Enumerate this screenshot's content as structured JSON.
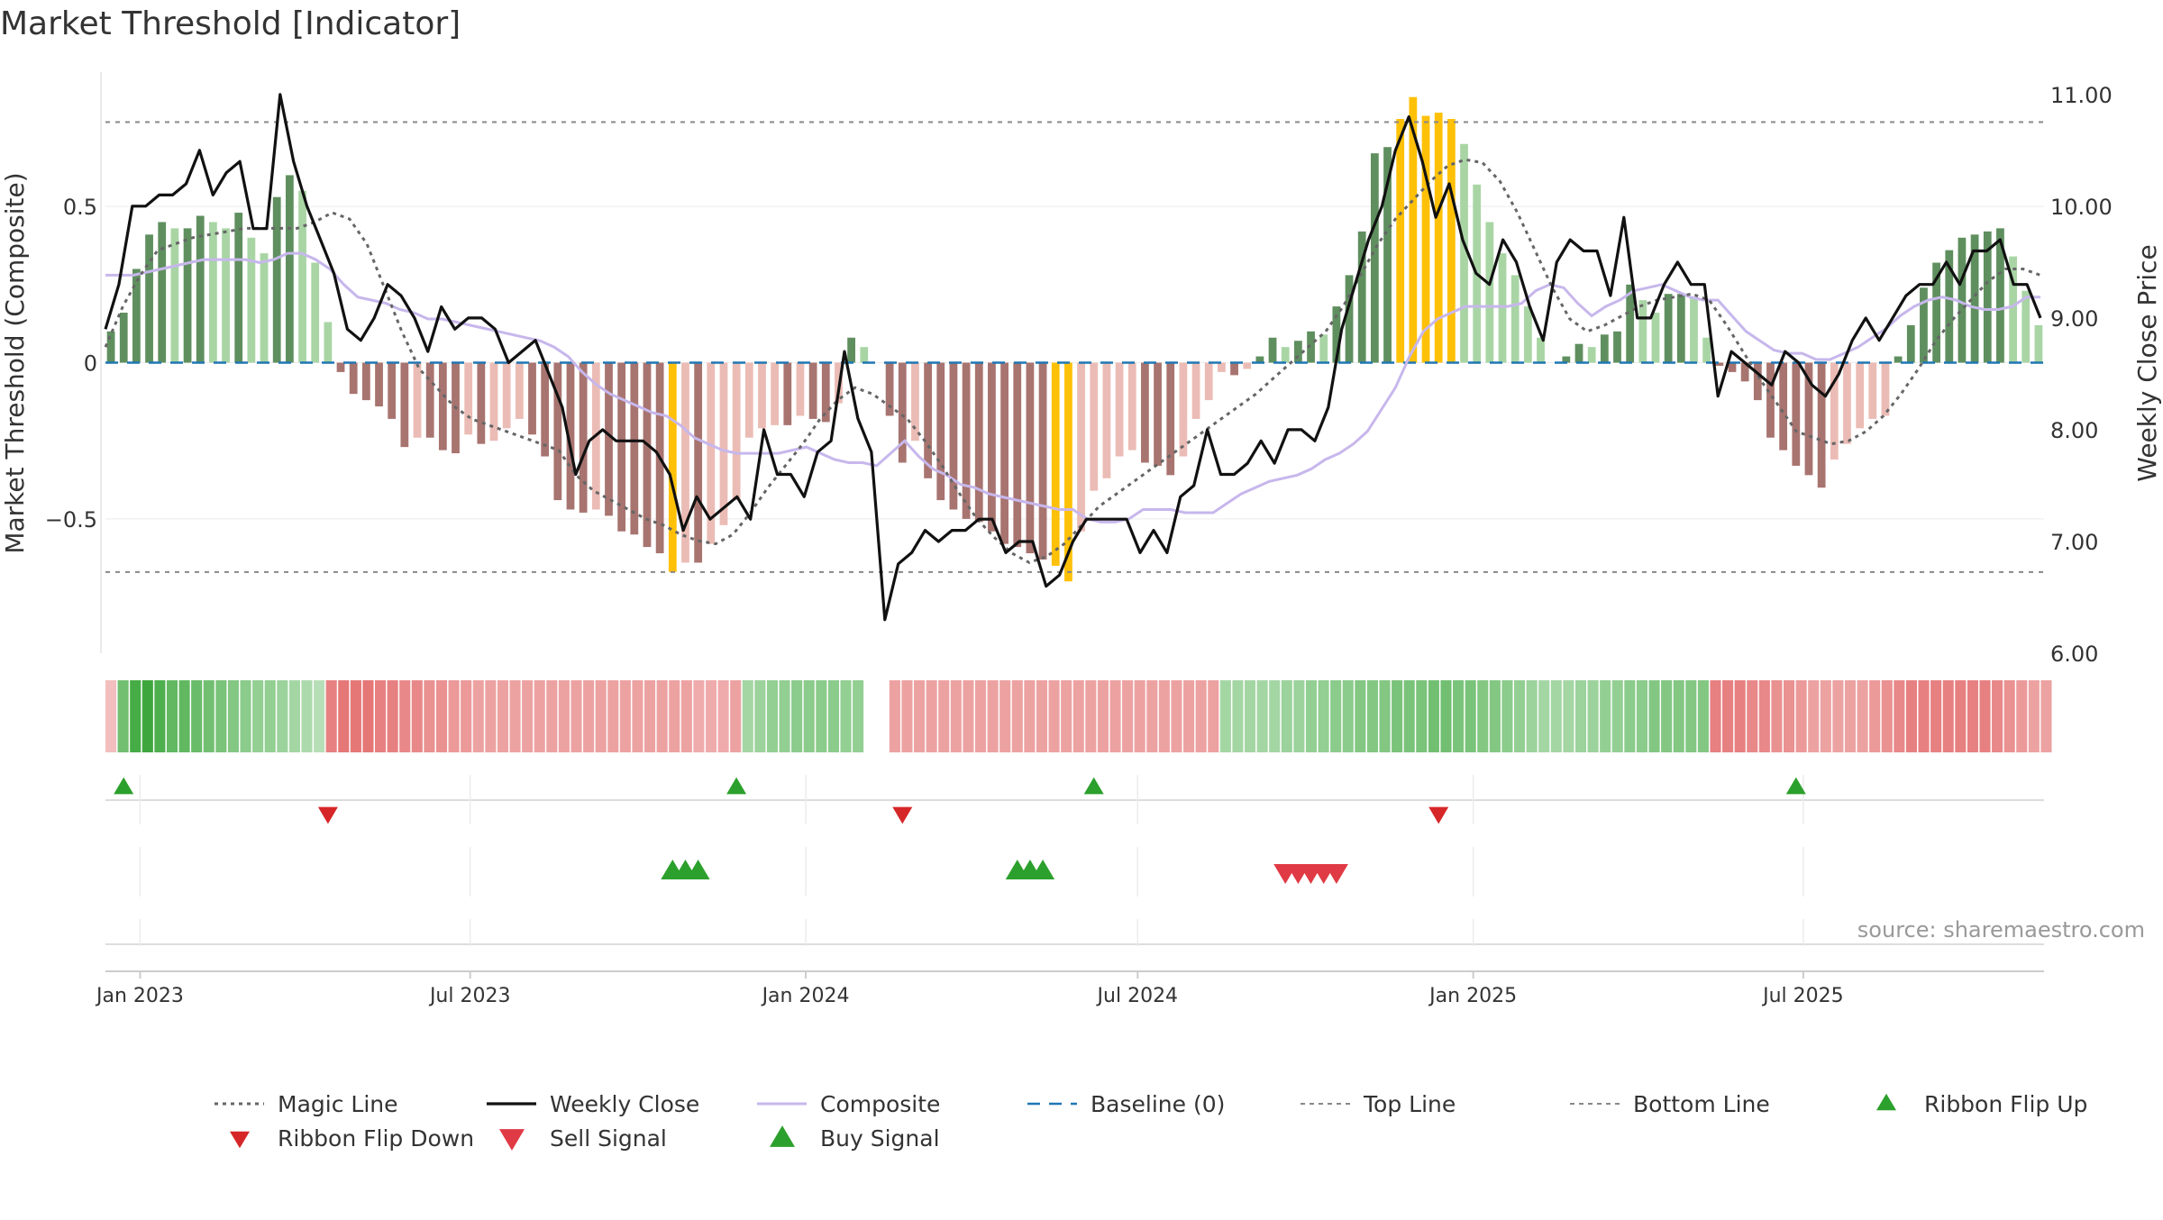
{
  "title": "Market Threshold [Indicator]",
  "source": "source: sharemaestro.com",
  "colors": {
    "dark_green": "#5f8f5f",
    "light_green": "#a9d5a5",
    "dark_red": "#a87470",
    "light_red": "#ebbcb5",
    "gold": "#ffc107",
    "composite": "#c7b7ec",
    "baseline": "#1f77b4",
    "magic": "#666666",
    "weekly": "#111111",
    "buy": "#2ca02c",
    "sell": "#d62728"
  },
  "chart_data": {
    "type": "bar",
    "start_date": "2022-12-16",
    "left_axis": {
      "label": "Market Threshold (Composite)",
      "ylim": [
        -0.93,
        0.93
      ],
      "ticks": [
        -0.5,
        0,
        0.5
      ],
      "tick_labels": [
        "−0.5",
        "0",
        "0.5"
      ]
    },
    "right_axis": {
      "label": "Weekly Close Price",
      "ylim": [
        6.0,
        11.2
      ],
      "ticks": [
        6,
        7,
        8,
        9,
        10,
        11
      ],
      "tick_labels": [
        "6.00",
        "7.00",
        "8.00",
        "9.00",
        "10.00",
        "11.00"
      ]
    },
    "x_ticks": [
      {
        "label": "Jan 2023",
        "date": "2023-01-01"
      },
      {
        "label": "Jul 2023",
        "date": "2023-07-01"
      },
      {
        "label": "Jan 2024",
        "date": "2024-01-01"
      },
      {
        "label": "Jul 2024",
        "date": "2024-07-01"
      },
      {
        "label": "Jan 2025",
        "date": "2025-01-01"
      },
      {
        "label": "Jul 2025",
        "date": "2025-07-01"
      }
    ],
    "top_line": 0.77,
    "bottom_line": -0.67,
    "composite_bars": [
      0.1,
      0.16,
      0.3,
      0.41,
      0.45,
      0.43,
      0.43,
      0.47,
      0.45,
      0.43,
      0.48,
      0.4,
      0.35,
      0.53,
      0.6,
      0.55,
      0.32,
      0.13,
      -0.03,
      -0.1,
      -0.12,
      -0.14,
      -0.18,
      -0.27,
      -0.24,
      -0.24,
      -0.28,
      -0.29,
      -0.23,
      -0.26,
      -0.25,
      -0.21,
      -0.18,
      -0.23,
      -0.3,
      -0.44,
      -0.47,
      -0.48,
      -0.47,
      -0.49,
      -0.54,
      -0.55,
      -0.59,
      -0.61,
      -0.67,
      -0.64,
      -0.64,
      -0.58,
      -0.52,
      -0.44,
      -0.24,
      -0.21,
      -0.2,
      -0.2,
      -0.17,
      -0.18,
      -0.19,
      -0.13,
      0.08,
      0.05,
      0.0,
      -0.17,
      -0.32,
      -0.25,
      -0.37,
      -0.44,
      -0.47,
      -0.5,
      -0.51,
      -0.54,
      -0.58,
      -0.59,
      -0.61,
      -0.63,
      -0.65,
      -0.7,
      -0.54,
      -0.41,
      -0.37,
      -0.3,
      -0.28,
      -0.32,
      -0.33,
      -0.36,
      -0.3,
      -0.18,
      -0.12,
      -0.03,
      -0.04,
      -0.02,
      0.02,
      0.08,
      0.05,
      0.07,
      0.1,
      0.09,
      0.18,
      0.28,
      0.42,
      0.67,
      0.69,
      0.78,
      0.85,
      0.79,
      0.8,
      0.78,
      0.7,
      0.57,
      0.45,
      0.35,
      0.28,
      0.18,
      0.08,
      0.0,
      0.02,
      0.06,
      0.05,
      0.09,
      0.1,
      0.25,
      0.2,
      0.16,
      0.22,
      0.22,
      0.21,
      0.08,
      -0.01,
      -0.03,
      -0.06,
      -0.12,
      -0.24,
      -0.28,
      -0.33,
      -0.36,
      -0.4,
      -0.31,
      -0.26,
      -0.21,
      -0.18,
      -0.17,
      0.02,
      0.12,
      0.24,
      0.32,
      0.36,
      0.4,
      0.41,
      0.42,
      0.43,
      0.34,
      0.23,
      0.12
    ],
    "weekly_close": [
      8.9,
      9.3,
      10.0,
      10.0,
      10.1,
      10.1,
      10.2,
      10.5,
      10.1,
      10.3,
      10.4,
      9.8,
      9.8,
      11.0,
      10.4,
      10.0,
      9.7,
      9.4,
      8.9,
      8.8,
      9.0,
      9.3,
      9.2,
      9.0,
      8.7,
      9.1,
      8.9,
      9.0,
      9.0,
      8.9,
      8.6,
      8.7,
      8.8,
      8.5,
      8.2,
      7.6,
      7.9,
      8.0,
      7.9,
      7.9,
      7.9,
      7.8,
      7.6,
      7.1,
      7.4,
      7.2,
      7.3,
      7.4,
      7.2,
      8.0,
      7.6,
      7.6,
      7.4,
      7.8,
      7.9,
      8.7,
      8.1,
      7.8,
      6.3,
      6.8,
      6.9,
      7.1,
      7.0,
      7.1,
      7.1,
      7.2,
      7.2,
      6.9,
      7.0,
      7.0,
      6.6,
      6.7,
      7.0,
      7.2,
      7.2,
      7.2,
      7.2,
      6.9,
      7.1,
      6.9,
      7.4,
      7.5,
      8.0,
      7.6,
      7.6,
      7.7,
      7.9,
      7.7,
      8.0,
      8.0,
      7.9,
      8.2,
      8.9,
      9.3,
      9.7,
      10.0,
      10.5,
      10.8,
      10.4,
      9.9,
      10.2,
      9.7,
      9.4,
      9.3,
      9.7,
      9.5,
      9.1,
      8.8,
      9.5,
      9.7,
      9.6,
      9.6,
      9.2,
      9.9,
      9.0,
      9.0,
      9.3,
      9.5,
      9.3,
      9.3,
      8.3,
      8.7,
      8.6,
      8.5,
      8.4,
      8.7,
      8.6,
      8.4,
      8.3,
      8.5,
      8.8,
      9.0,
      8.8,
      9.0,
      9.2,
      9.3,
      9.3,
      9.5,
      9.3,
      9.6,
      9.6,
      9.7,
      9.3,
      9.3,
      9.0
    ],
    "composite_line": [
      0.28,
      0.28,
      0.28,
      0.29,
      0.3,
      0.31,
      0.32,
      0.33,
      0.33,
      0.33,
      0.33,
      0.32,
      0.33,
      0.35,
      0.35,
      0.33,
      0.3,
      0.25,
      0.21,
      0.2,
      0.19,
      0.17,
      0.16,
      0.14,
      0.14,
      0.13,
      0.12,
      0.11,
      0.1,
      0.09,
      0.08,
      0.07,
      0.05,
      0.02,
      -0.03,
      -0.07,
      -0.1,
      -0.12,
      -0.14,
      -0.16,
      -0.17,
      -0.2,
      -0.24,
      -0.26,
      -0.28,
      -0.29,
      -0.29,
      -0.29,
      -0.29,
      -0.28,
      -0.27,
      -0.29,
      -0.31,
      -0.32,
      -0.32,
      -0.33,
      -0.29,
      -0.25,
      -0.3,
      -0.34,
      -0.36,
      -0.39,
      -0.4,
      -0.42,
      -0.43,
      -0.44,
      -0.45,
      -0.46,
      -0.47,
      -0.47,
      -0.5,
      -0.51,
      -0.51,
      -0.5,
      -0.47,
      -0.47,
      -0.47,
      -0.48,
      -0.48,
      -0.48,
      -0.45,
      -0.42,
      -0.4,
      -0.38,
      -0.37,
      -0.36,
      -0.34,
      -0.31,
      -0.29,
      -0.26,
      -0.22,
      -0.15,
      -0.08,
      0.02,
      0.1,
      0.14,
      0.16,
      0.18,
      0.18,
      0.18,
      0.18,
      0.19,
      0.23,
      0.25,
      0.24,
      0.19,
      0.15,
      0.18,
      0.2,
      0.23,
      0.24,
      0.25,
      0.23,
      0.21,
      0.2,
      0.2,
      0.15,
      0.1,
      0.07,
      0.04,
      0.03,
      0.03,
      0.01,
      0.01,
      0.03,
      0.05,
      0.08,
      0.11,
      0.15,
      0.18,
      0.2,
      0.21,
      0.2,
      0.18,
      0.17,
      0.17,
      0.18,
      0.21,
      0.21
    ],
    "magic_line": [
      0.05,
      0.18,
      0.28,
      0.36,
      0.38,
      0.4,
      0.41,
      0.42,
      0.43,
      0.43,
      0.43,
      0.43,
      0.45,
      0.48,
      0.46,
      0.38,
      0.24,
      0.1,
      -0.02,
      -0.08,
      -0.14,
      -0.18,
      -0.2,
      -0.22,
      -0.24,
      -0.26,
      -0.28,
      -0.36,
      -0.41,
      -0.44,
      -0.47,
      -0.5,
      -0.52,
      -0.55,
      -0.57,
      -0.58,
      -0.55,
      -0.48,
      -0.4,
      -0.33,
      -0.26,
      -0.18,
      -0.12,
      -0.08,
      -0.1,
      -0.14,
      -0.18,
      -0.25,
      -0.33,
      -0.42,
      -0.5,
      -0.56,
      -0.61,
      -0.64,
      -0.62,
      -0.58,
      -0.52,
      -0.46,
      -0.42,
      -0.38,
      -0.34,
      -0.3,
      -0.26,
      -0.22,
      -0.18,
      -0.14,
      -0.1,
      -0.05,
      0.0,
      0.05,
      0.1,
      0.18,
      0.28,
      0.38,
      0.46,
      0.52,
      0.58,
      0.63,
      0.65,
      0.64,
      0.58,
      0.48,
      0.36,
      0.24,
      0.14,
      0.1,
      0.12,
      0.15,
      0.18,
      0.2,
      0.21,
      0.22,
      0.2,
      0.12,
      0.03,
      -0.06,
      -0.14,
      -0.22,
      -0.24,
      -0.26,
      -0.25,
      -0.22,
      -0.17,
      -0.1,
      -0.02,
      0.07,
      0.14,
      0.2,
      0.26,
      0.3,
      0.3,
      0.28
    ],
    "ribbon_strength": [
      0.15,
      0.6,
      0.85,
      0.9,
      0.8,
      0.7,
      0.7,
      0.65,
      0.6,
      0.55,
      0.5,
      0.45,
      0.4,
      0.4,
      0.35,
      0.3,
      0.25,
      0.2,
      0.5,
      0.55,
      0.55,
      0.55,
      0.5,
      0.5,
      0.45,
      0.45,
      0.4,
      0.4,
      0.35,
      0.35,
      0.3,
      0.3,
      0.3,
      0.3,
      0.3,
      0.3,
      0.3,
      0.3,
      0.3,
      0.3,
      0.3,
      0.3,
      0.3,
      0.3,
      0.3,
      0.3,
      0.3,
      0.3,
      0.25,
      0.25,
      0.25,
      0.3,
      0.3,
      0.35,
      0.4,
      0.4,
      0.45,
      0.45,
      0.45,
      0.45,
      0.4,
      0.4,
      0.0,
      0.0,
      0.3,
      0.3,
      0.3,
      0.3,
      0.3,
      0.3,
      0.3,
      0.3,
      0.3,
      0.3,
      0.3,
      0.3,
      0.3,
      0.3,
      0.3,
      0.3,
      0.3,
      0.3,
      0.3,
      0.3,
      0.3,
      0.3,
      0.3,
      0.3,
      0.3,
      0.3,
      0.3,
      0.3,
      0.3,
      0.3,
      0.3,
      0.3,
      0.35,
      0.35,
      0.4,
      0.4,
      0.45,
      0.45,
      0.5,
      0.5,
      0.5,
      0.55,
      0.55,
      0.55,
      0.6,
      0.6,
      0.55,
      0.55,
      0.5,
      0.5,
      0.45,
      0.4,
      0.35,
      0.3,
      0.3,
      0.3,
      0.35,
      0.35,
      0.4,
      0.4,
      0.45,
      0.45,
      0.5,
      0.5,
      0.5,
      0.5,
      0.5,
      0.5,
      0.5,
      0.5,
      0.45,
      0.45,
      0.4,
      0.4,
      0.35,
      0.3,
      0.3,
      0.3,
      0.3,
      0.3,
      0.35,
      0.4,
      0.45,
      0.5,
      0.5,
      0.5,
      0.5,
      0.5,
      0.5,
      0.5,
      0.45,
      0.4,
      0.35,
      0.3,
      0.3
    ],
    "ribbon_direction": [
      -1,
      1,
      1,
      1,
      1,
      1,
      1,
      1,
      1,
      1,
      1,
      1,
      1,
      1,
      1,
      1,
      1,
      1,
      -1,
      -1,
      -1,
      -1,
      -1,
      -1,
      -1,
      -1,
      -1,
      -1,
      -1,
      -1,
      -1,
      -1,
      -1,
      -1,
      -1,
      -1,
      -1,
      -1,
      -1,
      -1,
      -1,
      -1,
      -1,
      -1,
      -1,
      -1,
      -1,
      -1,
      -1,
      -1,
      -1,
      -1,
      1,
      1,
      1,
      1,
      1,
      1,
      1,
      1,
      1,
      1,
      0,
      0,
      -1,
      -1,
      -1,
      -1,
      -1,
      -1,
      -1,
      -1,
      -1,
      -1,
      -1,
      -1,
      -1,
      -1,
      -1,
      -1,
      -1,
      -1,
      -1,
      -1,
      -1,
      -1,
      -1,
      -1,
      -1,
      -1,
      -1,
      1,
      1,
      1,
      1,
      1,
      1,
      1,
      1,
      1,
      1,
      1,
      1,
      1,
      1,
      1,
      1,
      1,
      1,
      1,
      1,
      1,
      1,
      1,
      1,
      1,
      1,
      1,
      1,
      1,
      1,
      1,
      1,
      1,
      1,
      1,
      1,
      1,
      1,
      1,
      1,
      -1,
      -1,
      -1,
      -1,
      -1,
      -1,
      -1,
      -1,
      -1,
      -1,
      -1,
      -1,
      -1,
      -1,
      -1,
      -1,
      -1,
      -1,
      -1,
      -1,
      -1,
      -1,
      -1,
      -1,
      -1,
      -1,
      -1,
      -1,
      -1,
      -1,
      -1,
      -1,
      -1,
      -1,
      1,
      1,
      1,
      1,
      1,
      1,
      1,
      1,
      1,
      1,
      1
    ],
    "ribbon_flip_up_dates": [
      "2022-12-23",
      "2023-11-24",
      "2024-06-07",
      "2025-06-27"
    ],
    "ribbon_flip_down_dates": [
      "2023-04-14",
      "2024-02-23",
      "2024-12-13"
    ],
    "buy_signal_dates": [
      "2023-10-20",
      "2023-10-27",
      "2023-11-03",
      "2024-04-26",
      "2024-05-03",
      "2024-05-10"
    ],
    "sell_signal_dates": [
      "2024-09-20",
      "2024-09-27",
      "2024-10-04",
      "2024-10-11",
      "2024-10-18"
    ],
    "legend": [
      {
        "label": "Magic Line",
        "style": "dotted-line"
      },
      {
        "label": "Weekly Close",
        "style": "solid-line"
      },
      {
        "label": "Composite",
        "style": "composite-line"
      },
      {
        "label": "Baseline (0)",
        "style": "dashed-line"
      },
      {
        "label": "Top Line",
        "style": "thin-dashed-line"
      },
      {
        "label": "Bottom Line",
        "style": "thin-dashed-line"
      },
      {
        "label": "Ribbon Flip Up",
        "style": "triangle-up-green"
      },
      {
        "label": "Ribbon Flip Down",
        "style": "triangle-down-red"
      },
      {
        "label": "Sell Signal",
        "style": "triangle-down-red-large"
      },
      {
        "label": "Buy Signal",
        "style": "triangle-up-green-large"
      }
    ]
  }
}
